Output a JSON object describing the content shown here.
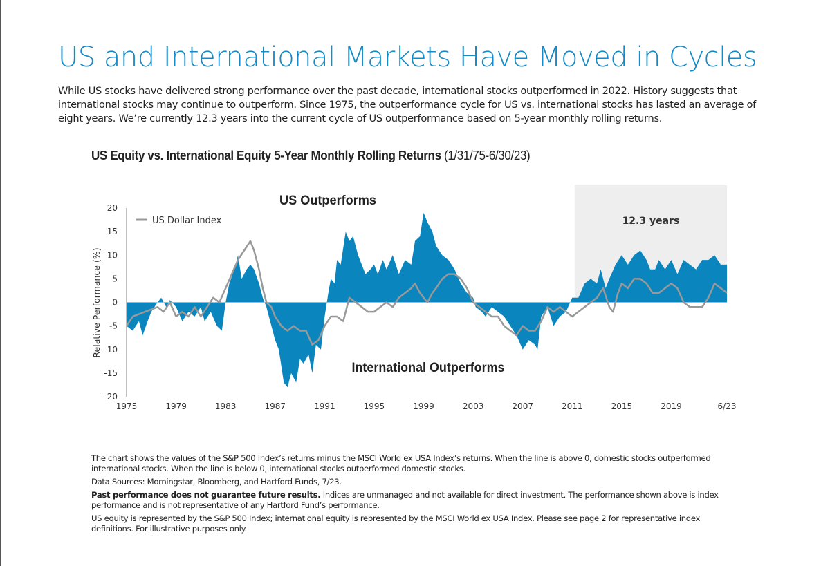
{
  "page": {
    "title": "US and International Markets Have Moved in Cycles",
    "intro": "While US stocks have delivered strong performance over the past decade, international stocks outperformed in 2022. History suggests that international stocks may continue to outperform. Since 1975, the outperformance cycle for US vs. international stocks has lasted an average of eight years. We’re currently 12.3 years into the current cycle of US outperformance based on 5-year monthly rolling returns.",
    "notes": {
      "n1": "The chart shows the values of the S&P 500 Index’s returns minus the MSCI World ex USA Index’s returns. When the line is above 0, domestic stocks outperformed international stocks. When the line is below 0, international stocks outperformed domestic stocks.",
      "n2": "Data Sources: Morningstar, Bloomberg, and Hartford Funds, 7/23.",
      "n3_bold": "Past performance does not guarantee future results.",
      "n3": " Indices are unmanaged and not available for direct investment. The performance shown above is index performance and is not representative of any Hartford Fund’s performance.",
      "n4": "US equity is represented by the S&P 500 Index; international equity is represented by the MSCI World ex USA Index. Please see page 2 for representative index definitions. For illustrative purposes only."
    }
  },
  "chart_data": {
    "type": "area",
    "title": "US Equity vs. International Equity 5-Year Monthly Rolling Returns",
    "title_suffix": "(1/31/75-6/30/23)",
    "ylabel": "Relative Performance (%)",
    "xlabel": "",
    "ylim": [
      -20,
      20
    ],
    "xlim": [
      1975,
      2023.5
    ],
    "yticks": [
      "20",
      "15",
      "10",
      "5",
      "0",
      "-5",
      "-10",
      "-15",
      "-20"
    ],
    "xticks": [
      {
        "label": "1975",
        "x": 1975
      },
      {
        "label": "1979",
        "x": 1979
      },
      {
        "label": "1983",
        "x": 1983
      },
      {
        "label": "1987",
        "x": 1987
      },
      {
        "label": "1991",
        "x": 1991
      },
      {
        "label": "1995",
        "x": 1995
      },
      {
        "label": "1999",
        "x": 1999
      },
      {
        "label": "2003",
        "x": 2003
      },
      {
        "label": "2007",
        "x": 2007
      },
      {
        "label": "2011",
        "x": 2011
      },
      {
        "label": "2015",
        "x": 2015
      },
      {
        "label": "2019",
        "x": 2019
      },
      {
        "label": "6/23",
        "x": 2023.5
      }
    ],
    "grid": false,
    "legend": "top-left",
    "annotations": {
      "top": "US Outperforms",
      "bottom": "International Outperforms",
      "shaded": "12.3 years",
      "shaded_range": [
        2011.2,
        2023.5
      ]
    },
    "colors": {
      "area": "#0a85be",
      "line": "#999999",
      "shade": "#eeeeee"
    },
    "series": [
      {
        "type": "area",
        "x": [
          1975,
          1975.5,
          1976,
          1976.3,
          1976.7,
          1977,
          1977.5,
          1977.8,
          1978.2,
          1978.5,
          1979,
          1979.5,
          1980,
          1980.5,
          1981,
          1981.3,
          1981.8,
          1982.3,
          1982.7,
          1983,
          1983.3,
          1983.7,
          1984,
          1984.3,
          1984.7,
          1985,
          1985.3,
          1985.7,
          1986,
          1986.3,
          1986.7,
          1987,
          1987.3,
          1987.7,
          1988,
          1988.3,
          1988.7,
          1989,
          1989.3,
          1989.7,
          1990,
          1990.3,
          1990.7,
          1991,
          1991.3,
          1991.5,
          1991.8,
          1992,
          1992.3,
          1992.7,
          1993,
          1993.3,
          1993.7,
          1994,
          1994.3,
          1994.7,
          1995,
          1995.3,
          1995.7,
          1996,
          1996.5,
          1997,
          1997.5,
          1998,
          1998.3,
          1998.7,
          1999,
          1999.3,
          1999.7,
          2000,
          2000.5,
          2001,
          2001.5,
          2002,
          2002.5,
          2003,
          2003.2,
          2003.7,
          2004,
          2004.5,
          2005,
          2005.5,
          2006,
          2006.5,
          2007,
          2007.5,
          2008,
          2008.2,
          2008.5,
          2009,
          2009.5,
          2010,
          2010.5,
          2011,
          2011.5,
          2012,
          2012.5,
          2013,
          2013.3,
          2013.7,
          2014,
          2014.5,
          2015,
          2015.5,
          2016,
          2016.5,
          2017,
          2017.3,
          2017.7,
          2018,
          2018.5,
          2019,
          2019.5,
          2020,
          2020.5,
          2021,
          2021.5,
          2022,
          2022.5,
          2023,
          2023.5
        ],
        "y": [
          -5,
          -6,
          -4,
          -7,
          -4,
          -2,
          0,
          1,
          -1,
          0.5,
          -1,
          -4,
          -2,
          -3,
          -1,
          -4,
          -2,
          -5,
          -6,
          0,
          4,
          7,
          10,
          5,
          7,
          8,
          7,
          4,
          1,
          -1,
          -5,
          -8,
          -10,
          -17,
          -18,
          -15,
          -17,
          -12,
          -13,
          -11,
          -15,
          -9,
          -10,
          -3,
          2,
          5,
          4,
          9,
          8,
          15,
          13,
          14,
          10,
          8,
          6,
          7,
          8,
          6,
          9,
          7,
          10,
          6,
          9,
          8,
          13,
          14,
          19,
          17,
          15,
          12,
          10,
          9,
          7,
          4,
          2,
          1,
          -1,
          -2,
          -3,
          -1,
          -2,
          -3,
          -5,
          -7,
          -10,
          -8,
          -9,
          -10,
          -3,
          -1,
          -5,
          -3,
          -2,
          1,
          1,
          4,
          5,
          4,
          7,
          3,
          5,
          8,
          10,
          8,
          10,
          11,
          9,
          7,
          7,
          9,
          7,
          9,
          6,
          9,
          8,
          7,
          9,
          9,
          10,
          8,
          8
        ]
      },
      {
        "type": "line",
        "name": "US Dollar Index",
        "x": [
          1975,
          1975.5,
          1976.5,
          1977.5,
          1978,
          1978.5,
          1979,
          1979.5,
          1980,
          1980.5,
          1981,
          1981.5,
          1982,
          1982.5,
          1983,
          1983.5,
          1984,
          1984.5,
          1985,
          1985.3,
          1985.7,
          1986,
          1986.3,
          1986.7,
          1987,
          1987.5,
          1988,
          1988.5,
          1989,
          1989.5,
          1990,
          1990.5,
          1991,
          1991.5,
          1992,
          1992.5,
          1993,
          1993.5,
          1994,
          1994.5,
          1995,
          1995.5,
          1996,
          1996.5,
          1997,
          1997.5,
          1998,
          1998.3,
          1998.7,
          1999,
          1999.3,
          1999.7,
          2000,
          2000.5,
          2001,
          2001.5,
          2002,
          2002.5,
          2003,
          2003.5,
          2004,
          2004.5,
          2005,
          2005.5,
          2006,
          2006.5,
          2007,
          2007.5,
          2008,
          2008.5,
          2009,
          2009.5,
          2010,
          2010.5,
          2011,
          2011.5,
          2012,
          2012.5,
          2013,
          2013.5,
          2014,
          2014.3,
          2014.7,
          2015,
          2015.5,
          2016,
          2016.5,
          2017,
          2017.5,
          2018,
          2018.5,
          2019,
          2019.5,
          2020,
          2020.5,
          2021,
          2021.5,
          2022,
          2022.5,
          2023,
          2023.5
        ],
        "y": [
          -5,
          -3,
          -2,
          -1,
          -2,
          0,
          -3,
          -2,
          -3,
          -1,
          -3,
          -1,
          1,
          0,
          3,
          6,
          9,
          11,
          13,
          11,
          7,
          3,
          0,
          -1,
          -3,
          -5,
          -6,
          -5,
          -6,
          -6,
          -9,
          -8,
          -5,
          -3,
          -3,
          -4,
          1,
          0,
          -1,
          -2,
          -2,
          -1,
          0,
          -1,
          1,
          2,
          3,
          4,
          2,
          1,
          0,
          2,
          3,
          5,
          6,
          6,
          5,
          3,
          0,
          -1,
          -2,
          -3,
          -3,
          -5,
          -6,
          -7,
          -5,
          -6,
          -6,
          -4,
          -1,
          -2,
          -1,
          -2,
          -3,
          -2,
          -1,
          0,
          1,
          3,
          -1,
          -2,
          2,
          4,
          3,
          5,
          5,
          4,
          2,
          2,
          3,
          4,
          3,
          0,
          -1,
          -1,
          -1,
          1,
          4,
          3,
          2
        ]
      }
    ]
  }
}
